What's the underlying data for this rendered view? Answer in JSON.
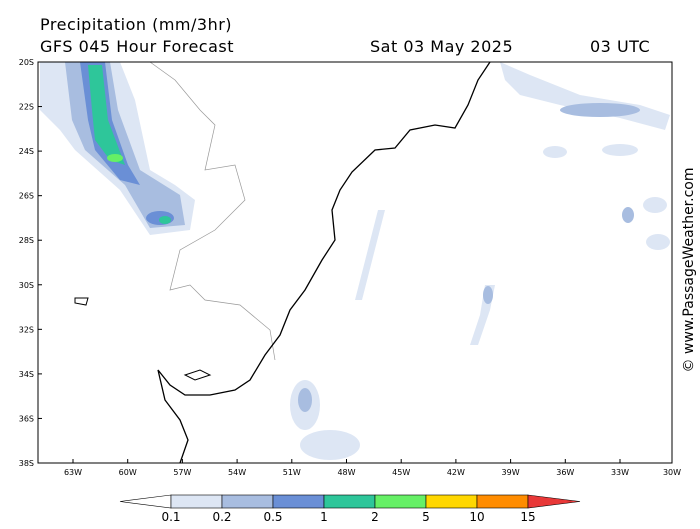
{
  "header": {
    "title": "Precipitation (mm/3hr)",
    "subtitle": "GFS 045 Hour Forecast",
    "date": "Sat 03 May 2025",
    "time": "03 UTC"
  },
  "map": {
    "lat_labels": [
      "20S",
      "22S",
      "24S",
      "26S",
      "28S",
      "30S",
      "32S",
      "34S",
      "36S",
      "38S"
    ],
    "lon_labels": [
      "63W",
      "60W",
      "57W",
      "54W",
      "51W",
      "48W",
      "45W",
      "42W",
      "39W",
      "36W",
      "33W",
      "30W"
    ]
  },
  "legend": {
    "labels": [
      "0.1",
      "0.2",
      "0.5",
      "1",
      "2",
      "5",
      "10",
      "15"
    ],
    "colors": [
      "#ffffff",
      "#dde6f4",
      "#a8bde0",
      "#6a8fd6",
      "#2ec69a",
      "#66f066",
      "#ffd700",
      "#ff8c00",
      "#e83838"
    ]
  },
  "credit": "© www.PassageWeather.com"
}
